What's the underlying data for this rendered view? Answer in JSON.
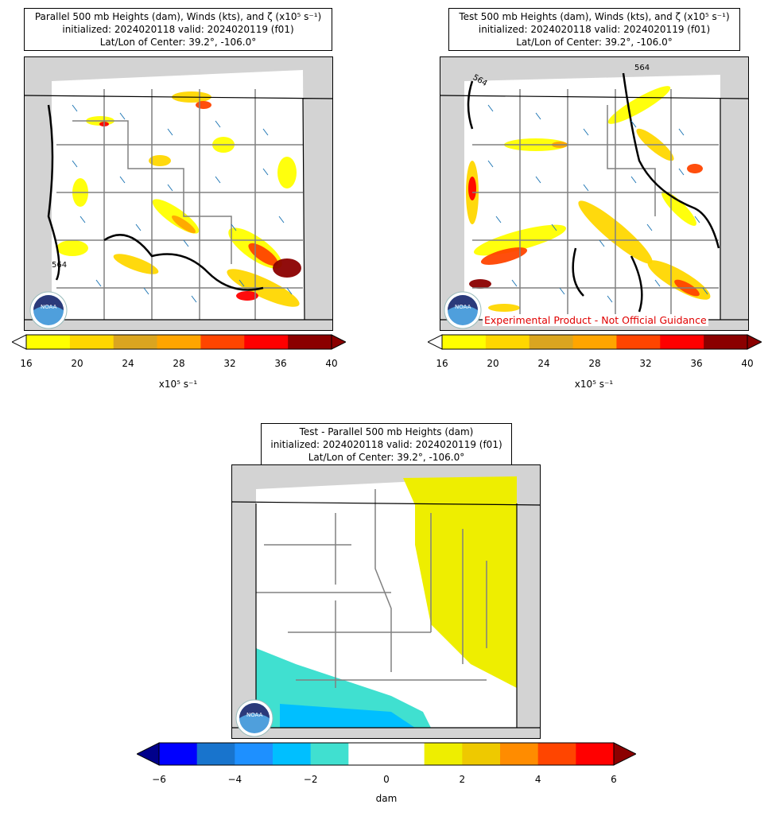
{
  "panels": {
    "parallel": {
      "title_line1": "Parallel 500 mb Heights (dam), Winds (kts), and ζ (x10⁵ s⁻¹)",
      "title_line2": "initialized: 2024020118 valid: 2024020119 (f01)",
      "title_line3": "Lat/Lon of Center: 39.2°, -106.0°",
      "contour_label": "564",
      "colorbar": {
        "ticks": [
          "16",
          "20",
          "24",
          "28",
          "32",
          "36",
          "40"
        ],
        "label": "x10⁵ s⁻¹",
        "colors": [
          "#ffff00",
          "#ffd700",
          "#daa520",
          "#ffa500",
          "#ff4500",
          "#ff0000",
          "#8b0000"
        ]
      }
    },
    "test": {
      "title_line1": "Test 500 mb Heights (dam), Winds (kts), and ζ (x10⁵ s⁻¹)",
      "title_line2": "initialized: 2024020118 valid: 2024020119 (f01)",
      "title_line3": "Lat/Lon of Center: 39.2°, -106.0°",
      "contour_label_a": "564",
      "contour_label_b": "564",
      "contour_label_c": "564",
      "watermark": "Experimental Product - Not Official Guidance",
      "colorbar": {
        "ticks": [
          "16",
          "20",
          "24",
          "28",
          "32",
          "36",
          "40"
        ],
        "label": "x10⁵ s⁻¹",
        "colors": [
          "#ffff00",
          "#ffd700",
          "#daa520",
          "#ffa500",
          "#ff4500",
          "#ff0000",
          "#8b0000"
        ]
      }
    },
    "difference": {
      "title_line1": "Test - Parallel 500 mb Heights (dam)",
      "title_line2": "initialized: 2024020118 valid: 2024020119 (f01)",
      "title_line3": "Lat/Lon of Center: 39.2°, -106.0°",
      "colorbar": {
        "ticks": [
          "−6",
          "−4",
          "−2",
          "0",
          "2",
          "4",
          "6"
        ],
        "label": "dam",
        "colors": [
          "#0000ff",
          "#1874cd",
          "#1e90ff",
          "#00bfff",
          "#40e0d0",
          "#ffffff",
          "#ffffff",
          "#eeee00",
          "#eec900",
          "#ff8c00",
          "#ff4500",
          "#ff0000"
        ],
        "under": "#00008b",
        "over": "#8b0000"
      }
    }
  },
  "logo": {
    "text": "NOAA"
  }
}
